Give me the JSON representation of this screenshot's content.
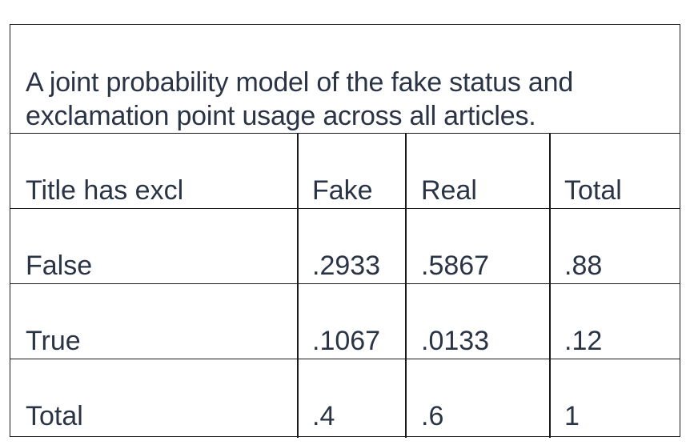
{
  "table": {
    "caption": "A joint probability model of the fake status and exclamation point usage across all articles.",
    "header": [
      "Title has excl",
      "Fake",
      "Real",
      "Total"
    ],
    "rows": [
      [
        "False",
        ".2933",
        ".5867",
        ".88"
      ],
      [
        "True",
        ".1067",
        ".0133",
        ".12"
      ],
      [
        "Total",
        ".4",
        ".6",
        "1"
      ]
    ]
  }
}
